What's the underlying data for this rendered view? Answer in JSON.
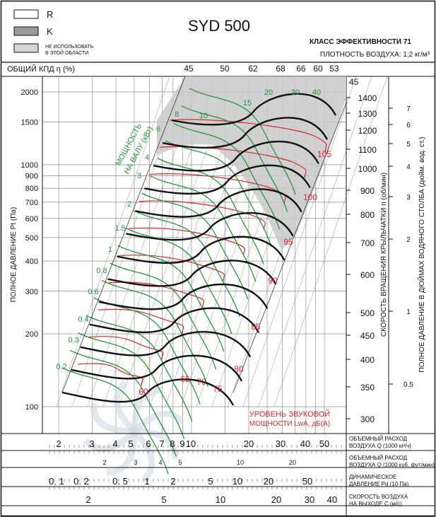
{
  "header": {
    "model": "SYD 500",
    "legend_r": "R",
    "legend_k": "K",
    "legend_gray_1": "НЕ ИСПОЛЬЗОВАТЬ",
    "legend_gray_2": "В ЭТОЙ ОБЛАСТИ",
    "efficiency_class": "КЛАСС ЭФФЕКТИВНОСТИ 71",
    "air_density": "ПЛОТНОСТЬ ВОЗДУХА: 1,2 кг/м³",
    "eff_label": "ОБЩИЙ КПД η (%)"
  },
  "chart_data": {
    "type": "line",
    "y_axis_label": "ПОЛНОЕ ДАВЛЕНИЕ Pt (Па)",
    "y_scale": "log",
    "y_ticks": [
      100,
      200,
      300,
      400,
      500,
      600,
      700,
      800,
      900,
      1000,
      1500,
      2000
    ],
    "efficiency_ticks": [
      "45",
      "50",
      "62",
      "68",
      "66",
      "60",
      "53"
    ],
    "right_rpm_label": "СКОРОСТЬ ВРАЩЕНИЯ КРЫЛЬЧАТКИ n (об/мин)",
    "right_rpm_ticks": [
      1400,
      1300,
      1200,
      1100,
      1000,
      900,
      800,
      700,
      600,
      500,
      450,
      400,
      350,
      300
    ],
    "right_inch_label": "ПОЛНОЕ ДАВЛЕНИЕ В ДЮЙМАХ ВОДЯНОГО СТОЛБА (дюйм. вод. ст.)",
    "right_inch_ticks": [
      "7",
      "6",
      "5",
      "4",
      "3",
      "2",
      "1",
      "0.5"
    ],
    "power_label_1": "МОЩНОСТЬ",
    "power_label_2": "НА ВАЛУ (кВт)",
    "power_values": [
      "0.2",
      "0.3",
      "0.4",
      "0.6",
      "0.8",
      "1",
      "1.5",
      "2",
      "3",
      "4",
      "6",
      "8",
      "10",
      "15",
      "20",
      "30",
      "40"
    ],
    "sound_label_1": "УРОВЕНЬ ЗВУКОВОЙ",
    "sound_label_2": "МОЩНОСТИ LwA, дБ(А)",
    "sound_values": [
      "60",
      "65",
      "70",
      "75",
      "80",
      "85",
      "90",
      "95",
      "100",
      "105"
    ],
    "rpm_curve_values": [
      350,
      400,
      450,
      500,
      600,
      700,
      800,
      900,
      1000,
      1100,
      1200,
      1300,
      1400
    ],
    "bottom_scales": [
      {
        "label_1": "ОБЪЕМНЫЙ РАСХОД",
        "label_2": "ВОЗДУХА Q (1000 м³/ч)",
        "ticks": [
          "2",
          "3",
          "4",
          "5",
          "6",
          "7",
          "8",
          "9",
          "10",
          "20",
          "30",
          "40",
          "50"
        ]
      },
      {
        "label_1": "ОБЪЕМНЫЙ РАСХОД",
        "label_2": "ВОЗДУХА Q (1000 куб. фут/мин)",
        "ticks": [
          "2",
          "3",
          "4",
          "5",
          "10",
          "20"
        ]
      },
      {
        "label_1": "ДИНАМИЧЕСКОЕ",
        "label_2": "ДАВЛЕНИЕ Pd (10 Па)",
        "ticks": [
          "0. 1",
          "0. 2",
          "0. 5",
          "1",
          "2",
          "5",
          "10",
          "20",
          "50"
        ]
      },
      {
        "label_1": "СКОРОСТЬ ВОЗДУХА",
        "label_2": "НА ВЫХОДЕ C (м/с)",
        "ticks": [
          "2",
          "5",
          "10",
          "20",
          "30",
          "40"
        ]
      }
    ]
  },
  "colors": {
    "black_curve": "#111111",
    "green_curve": "#1d9a3a",
    "red_curve": "#d9262c",
    "gray_region": "#c9c9c9",
    "watermark": "#cdd8e6"
  }
}
